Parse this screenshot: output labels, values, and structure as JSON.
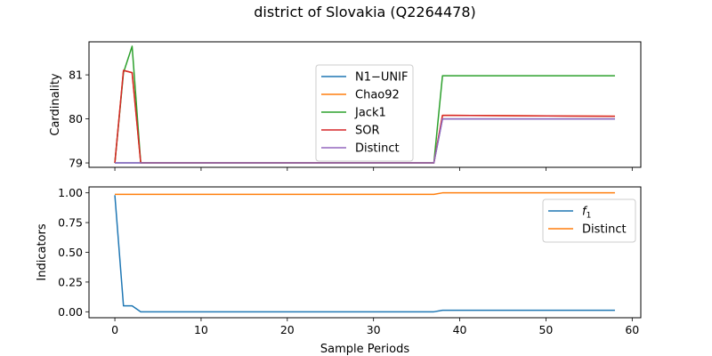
{
  "figure": {
    "title": "district of Slovakia (Q2264478)"
  },
  "chart_data": [
    {
      "type": "line",
      "xlabel": "",
      "ylabel": "Cardinality",
      "xlim": [
        -3,
        61
      ],
      "ylim": [
        78.9,
        81.75
      ],
      "xticks": [
        0,
        10,
        20,
        30,
        40,
        50,
        60
      ],
      "show_xticklabels": false,
      "yticks": [
        79,
        80,
        81
      ],
      "grid": false,
      "legend_position": "upper-center",
      "series": [
        {
          "name": "N1−UNIF",
          "color": "#1f77b4",
          "points": [
            [
              0,
              79.0
            ],
            [
              1,
              79.0
            ],
            [
              2,
              79.0
            ],
            [
              3,
              79.0
            ],
            [
              37,
              79.0
            ],
            [
              38,
              80.0
            ],
            [
              58,
              80.0
            ]
          ]
        },
        {
          "name": "Chao92",
          "color": "#ff7f0e",
          "points": [
            [
              0,
              79.0
            ],
            [
              1,
              81.1
            ],
            [
              2,
              81.05
            ],
            [
              3,
              79.0
            ],
            [
              37,
              79.0
            ],
            [
              38,
              80.08
            ],
            [
              58,
              80.06
            ]
          ]
        },
        {
          "name": "Jack1",
          "color": "#2ca02c",
          "points": [
            [
              0,
              79.0
            ],
            [
              1,
              81.05
            ],
            [
              2,
              81.65
            ],
            [
              3,
              79.0
            ],
            [
              37,
              79.0
            ],
            [
              38,
              80.98
            ],
            [
              58,
              80.98
            ]
          ]
        },
        {
          "name": "SOR",
          "color": "#d62728",
          "points": [
            [
              0,
              79.0
            ],
            [
              1,
              81.1
            ],
            [
              2,
              81.05
            ],
            [
              3,
              79.0
            ],
            [
              37,
              79.0
            ],
            [
              38,
              80.08
            ],
            [
              58,
              80.06
            ]
          ]
        },
        {
          "name": "Distinct",
          "color": "#9467bd",
          "points": [
            [
              0,
              79.0
            ],
            [
              3,
              79.0
            ],
            [
              37,
              79.0
            ],
            [
              38,
              80.0
            ],
            [
              58,
              80.0
            ]
          ]
        }
      ]
    },
    {
      "type": "line",
      "xlabel": "Sample Periods",
      "ylabel": "Indicators",
      "xlim": [
        -3,
        61
      ],
      "ylim": [
        -0.05,
        1.05
      ],
      "xticks": [
        0,
        10,
        20,
        30,
        40,
        50,
        60
      ],
      "show_xticklabels": true,
      "yticks": [
        0.0,
        0.25,
        0.5,
        0.75,
        1.0
      ],
      "yticklabels": [
        "0.00",
        "0.25",
        "0.50",
        "0.75",
        "1.00"
      ],
      "grid": false,
      "legend_position": "upper-right",
      "series": [
        {
          "name": "f1",
          "color": "#1f77b4",
          "points": [
            [
              0,
              0.98
            ],
            [
              1,
              0.05
            ],
            [
              2,
              0.05
            ],
            [
              3,
              0.0
            ],
            [
              37,
              0.0
            ],
            [
              38,
              0.0125
            ],
            [
              58,
              0.0125
            ]
          ]
        },
        {
          "name": "Distinct",
          "color": "#ff7f0e",
          "points": [
            [
              0,
              0.987
            ],
            [
              37,
              0.987
            ],
            [
              38,
              1.0
            ],
            [
              58,
              1.0
            ]
          ]
        }
      ]
    }
  ]
}
